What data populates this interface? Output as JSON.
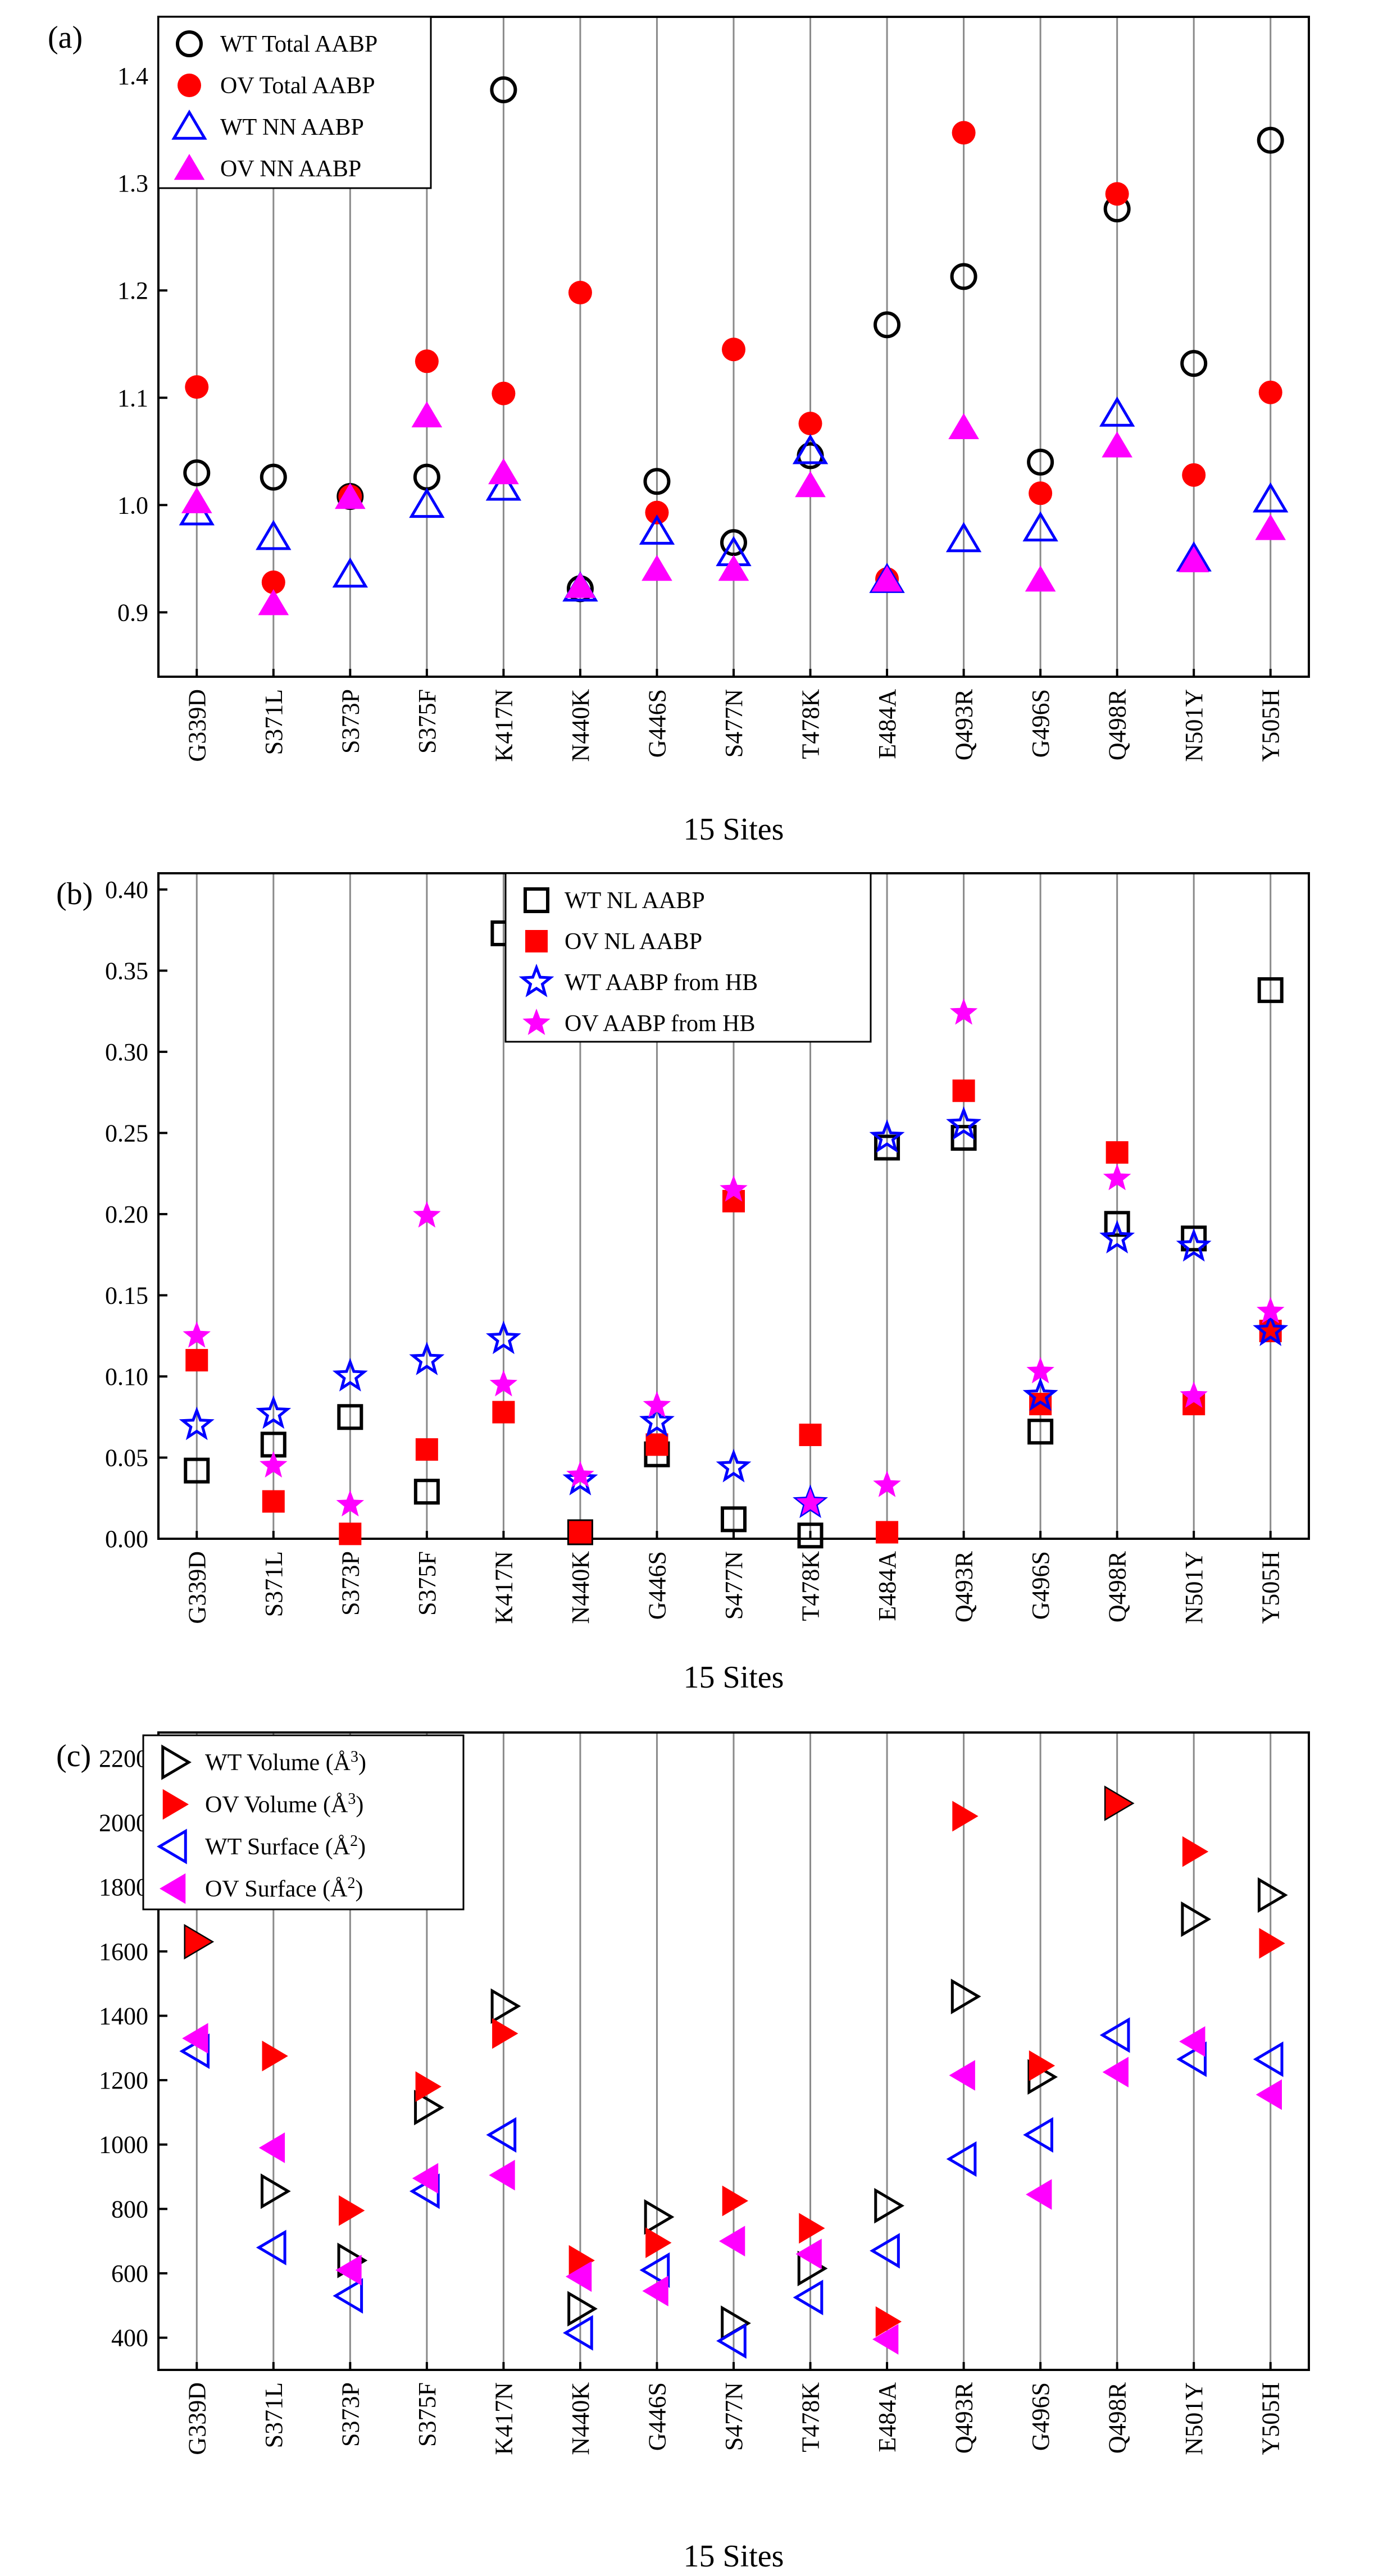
{
  "chart_data": [
    {
      "type": "scatter",
      "panel_label": "(a)",
      "xlabel": "15 Sites",
      "ylabel": "",
      "categories": [
        "G339D",
        "S371L",
        "S373P",
        "S375F",
        "K417N",
        "N440K",
        "G446S",
        "S477N",
        "T478K",
        "E484A",
        "Q493R",
        "G496S",
        "Q498R",
        "N501Y",
        "Y505H"
      ],
      "ylim": [
        0.84,
        1.455
      ],
      "yticks": [
        0.9,
        1.0,
        1.1,
        1.2,
        1.3,
        1.4
      ],
      "ytick_labels": [
        "0.9",
        "1.0",
        "1.1",
        "1.2",
        "1.3",
        "1.4"
      ],
      "legend_position": "top-left",
      "series": [
        {
          "name": "WT Total AABP",
          "marker": "circle-open",
          "color": "#000000",
          "values": [
            1.03,
            1.026,
            1.008,
            1.026,
            1.387,
            0.922,
            1.022,
            0.965,
            1.046,
            1.168,
            1.213,
            1.04,
            1.276,
            1.132,
            1.34
          ]
        },
        {
          "name": "OV Total AABP",
          "marker": "circle-filled",
          "color": "#ff0000",
          "values": [
            1.11,
            0.928,
            1.008,
            1.134,
            1.104,
            1.198,
            0.993,
            1.145,
            1.076,
            0.931,
            1.347,
            1.011,
            1.29,
            1.028,
            1.105
          ]
        },
        {
          "name": "WT NN AABP",
          "marker": "triangle-up-open",
          "color": "#0000ff",
          "values": [
            0.993,
            0.97,
            0.935,
            1.0,
            1.016,
            0.922,
            0.975,
            0.955,
            1.05,
            0.93,
            0.968,
            0.978,
            1.085,
            0.95,
            1.005
          ]
        },
        {
          "name": "OV NN AABP",
          "marker": "triangle-up-filled",
          "color": "#ff00ff",
          "values": [
            1.003,
            0.908,
            1.007,
            1.083,
            1.03,
            0.924,
            0.94,
            0.94,
            1.018,
            0.93,
            1.072,
            0.93,
            1.055,
            0.948,
            0.978
          ]
        }
      ]
    },
    {
      "type": "scatter",
      "panel_label": "(b)",
      "xlabel": "15 Sites",
      "ylabel": "",
      "categories": [
        "G339D",
        "S371L",
        "S373P",
        "S375F",
        "K417N",
        "N440K",
        "G446S",
        "S477N",
        "T478K",
        "E484A",
        "Q493R",
        "G496S",
        "Q498R",
        "N501Y",
        "Y505H"
      ],
      "ylim": [
        0.0,
        0.41
      ],
      "yticks": [
        0.0,
        0.05,
        0.1,
        0.15,
        0.2,
        0.25,
        0.3,
        0.35,
        0.4
      ],
      "ytick_labels": [
        "0.00",
        "0.05",
        "0.10",
        "0.15",
        "0.20",
        "0.25",
        "0.30",
        "0.35",
        "0.40"
      ],
      "legend_position": "top-center",
      "series": [
        {
          "name": "WT NL AABP",
          "marker": "square-open",
          "color": "#000000",
          "values": [
            0.042,
            0.058,
            0.075,
            0.029,
            0.373,
            0.004,
            0.052,
            0.012,
            0.002,
            0.241,
            0.247,
            0.066,
            0.194,
            0.185,
            0.338
          ]
        },
        {
          "name": "OV NL AABP",
          "marker": "square-filled",
          "color": "#ff0000",
          "values": [
            0.11,
            0.023,
            0.003,
            0.055,
            0.078,
            0.004,
            0.058,
            0.208,
            0.064,
            0.004,
            0.276,
            0.083,
            0.238,
            0.083,
            0.128
          ]
        },
        {
          "name": "WT AABP from HB",
          "marker": "star-open",
          "color": "#0000ff",
          "values": [
            0.07,
            0.077,
            0.1,
            0.11,
            0.123,
            0.036,
            0.072,
            0.044,
            0.022,
            0.247,
            0.255,
            0.088,
            0.185,
            0.18,
            0.128
          ]
        },
        {
          "name": "OV AABP from HB",
          "marker": "star-filled",
          "color": "#ff00ff",
          "values": [
            0.125,
            0.045,
            0.021,
            0.199,
            0.095,
            0.039,
            0.082,
            0.215,
            0.022,
            0.033,
            0.324,
            0.103,
            0.222,
            0.088,
            0.14
          ]
        }
      ]
    },
    {
      "type": "scatter",
      "panel_label": "(c)",
      "xlabel": "15 Sites",
      "ylabel": "",
      "categories": [
        "G339D",
        "S371L",
        "S373P",
        "S375F",
        "K417N",
        "N440K",
        "G446S",
        "S477N",
        "T478K",
        "E484A",
        "Q493R",
        "G496S",
        "Q498R",
        "N501Y",
        "Y505H"
      ],
      "ylim": [
        300,
        2280
      ],
      "yticks": [
        400,
        600,
        800,
        1000,
        1200,
        1400,
        1600,
        1800,
        2000,
        2200
      ],
      "ytick_labels": [
        "400",
        "600",
        "800",
        "1000",
        "1200",
        "1400",
        "1600",
        "1800",
        "2000",
        "2200"
      ],
      "legend_position": "top-left",
      "legend_unit_volume": "Å",
      "legend_unit_surface": "Å",
      "legend_sup_volume": "3",
      "legend_sup_surface": "2",
      "series": [
        {
          "name": "WT Volume",
          "marker": "triangle-right-open",
          "color": "#000000",
          "values": [
            1630,
            855,
            640,
            1115,
            1430,
            490,
            775,
            445,
            615,
            810,
            1460,
            1210,
            2060,
            1700,
            1775
          ]
        },
        {
          "name": "OV Volume",
          "marker": "triangle-right-filled",
          "color": "#ff0000",
          "values": [
            1630,
            1275,
            795,
            1180,
            1345,
            640,
            695,
            825,
            740,
            450,
            2020,
            1245,
            2060,
            1910,
            1625
          ]
        },
        {
          "name": "WT Surface",
          "marker": "triangle-left-open",
          "color": "#0000ff",
          "values": [
            1290,
            680,
            530,
            855,
            1030,
            415,
            610,
            390,
            525,
            670,
            955,
            1030,
            1340,
            1265,
            1265
          ]
        },
        {
          "name": "OV Surface",
          "marker": "triangle-left-filled",
          "color": "#ff00ff",
          "values": [
            1330,
            990,
            610,
            895,
            905,
            590,
            545,
            700,
            660,
            395,
            1215,
            845,
            1225,
            1320,
            1155
          ]
        }
      ]
    }
  ]
}
